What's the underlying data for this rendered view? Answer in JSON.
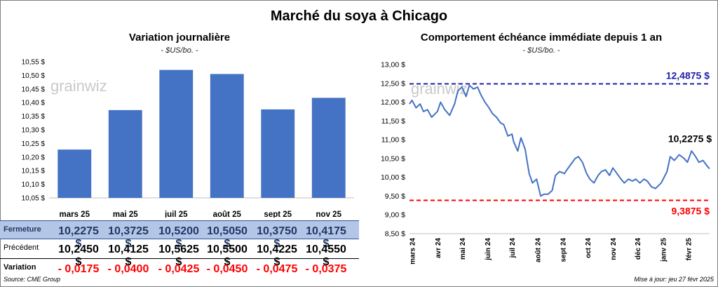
{
  "title": "Marché du soya à Chicago",
  "left_panel": {
    "title": "Variation journalière",
    "subtitle": "- $US/bo. -",
    "watermark": "grainwiz",
    "table": {
      "rows": [
        {
          "label": "Fermeture",
          "values": [
            "10,2275 $",
            "10,3725 $",
            "10,5200 $",
            "10,5050 $",
            "10,3750 $",
            "10,4175 $"
          ]
        },
        {
          "label": "Précédent",
          "values": [
            "10,2450 $",
            "10,4125 $",
            "10,5625 $",
            "10,5500 $",
            "10,4225 $",
            "10,4550 $"
          ]
        },
        {
          "label": "Variation",
          "values": [
            "- 0,0175",
            "- 0,0400",
            "- 0,0425",
            "- 0,0450",
            "- 0,0475",
            "- 0,0375"
          ]
        }
      ]
    }
  },
  "right_panel": {
    "title": "Comportement échéance immédiate depuis 1 an",
    "subtitle": "- $US/bo. -",
    "watermark": "grainwiz"
  },
  "footer": {
    "source": "Source: CME Group",
    "updated": "Mise à jour: jeu 27 févr 2025"
  },
  "colors": {
    "bar": "#4472c4",
    "line": "#4472c4",
    "high_line": "#1f1fa8",
    "low_line": "#ff0000",
    "table_highlight": "#b4c6e7",
    "negative": "#ff0000"
  },
  "chart_data": [
    {
      "type": "bar",
      "title": "Variation journalière",
      "subtitle": "- $US/bo. -",
      "categories": [
        "mars 25",
        "mai 25",
        "juil 25",
        "août 25",
        "sept 25",
        "nov 25"
      ],
      "values": [
        10.2275,
        10.3725,
        10.52,
        10.505,
        10.375,
        10.4175
      ],
      "ylim": [
        10.05,
        10.55
      ],
      "yticks": [
        10.05,
        10.1,
        10.15,
        10.2,
        10.25,
        10.3,
        10.35,
        10.4,
        10.45,
        10.5,
        10.55
      ],
      "ytick_labels": [
        "10,05 $",
        "10,10 $",
        "10,15 $",
        "10,20 $",
        "10,25 $",
        "10,30 $",
        "10,35 $",
        "10,40 $",
        "10,45 $",
        "10,50 $",
        "10,55 $"
      ],
      "grid": false,
      "legend": "none"
    },
    {
      "type": "line",
      "title": "Comportement échéance immédiate depuis 1 an",
      "subtitle": "- $US/bo. -",
      "ylim": [
        8.5,
        13.0
      ],
      "yticks": [
        8.5,
        9.0,
        9.5,
        10.0,
        10.5,
        11.0,
        11.5,
        12.0,
        12.5,
        13.0
      ],
      "ytick_labels": [
        "8,50 $",
        "9,00 $",
        "9,50 $",
        "10,00 $",
        "10,50 $",
        "11,00 $",
        "11,50 $",
        "12,00 $",
        "12,50 $",
        "13,00 $"
      ],
      "xlim": [
        "2024-02-27",
        "2025-02-27"
      ],
      "xticks": [
        "2024-03-01",
        "2024-04-01",
        "2024-05-01",
        "2024-06-01",
        "2024-07-01",
        "2024-08-01",
        "2024-09-01",
        "2024-10-01",
        "2024-11-01",
        "2024-12-01",
        "2025-01-01",
        "2025-02-01"
      ],
      "xtick_labels": [
        "mars 24",
        "avr 24",
        "mai 24",
        "juin 24",
        "juil 24",
        "août 24",
        "sept 24",
        "oct 24",
        "nov 24",
        "déc 24",
        "janv 25",
        "févr 25"
      ],
      "series": [
        {
          "x": [
            "2024-02-27",
            "2024-03-01",
            "2024-03-06",
            "2024-03-11",
            "2024-03-15",
            "2024-03-20",
            "2024-03-25",
            "2024-04-01",
            "2024-04-05",
            "2024-04-10",
            "2024-04-16",
            "2024-04-22",
            "2024-04-26",
            "2024-05-01",
            "2024-05-06",
            "2024-05-10",
            "2024-05-15",
            "2024-05-20",
            "2024-05-24",
            "2024-05-29",
            "2024-06-03",
            "2024-06-07",
            "2024-06-12",
            "2024-06-17",
            "2024-06-21",
            "2024-06-26",
            "2024-07-01",
            "2024-07-03",
            "2024-07-08",
            "2024-07-12",
            "2024-07-17",
            "2024-07-22",
            "2024-07-26",
            "2024-07-31",
            "2024-08-05",
            "2024-08-09",
            "2024-08-14",
            "2024-08-19",
            "2024-08-23",
            "2024-08-28",
            "2024-09-03",
            "2024-09-06",
            "2024-09-11",
            "2024-09-16",
            "2024-09-20",
            "2024-09-25",
            "2024-09-30",
            "2024-10-04",
            "2024-10-09",
            "2024-10-14",
            "2024-10-18",
            "2024-10-23",
            "2024-10-28",
            "2024-11-01",
            "2024-11-06",
            "2024-11-11",
            "2024-11-15",
            "2024-11-20",
            "2024-11-25",
            "2024-11-29",
            "2024-12-04",
            "2024-12-09",
            "2024-12-13",
            "2024-12-18",
            "2024-12-23",
            "2024-12-30",
            "2025-01-06",
            "2025-01-10",
            "2025-01-15",
            "2025-01-21",
            "2025-01-27",
            "2025-01-31",
            "2025-02-05",
            "2025-02-10",
            "2025-02-14",
            "2025-02-19",
            "2025-02-24",
            "2025-02-27"
          ],
          "y": [
            11.95,
            12.05,
            11.85,
            11.95,
            11.75,
            11.8,
            11.6,
            11.75,
            12.0,
            11.8,
            11.65,
            11.95,
            12.3,
            12.4,
            12.15,
            12.45,
            12.35,
            12.4,
            12.2,
            12.0,
            11.85,
            11.7,
            11.6,
            11.45,
            11.4,
            11.1,
            11.15,
            10.95,
            10.7,
            11.05,
            10.75,
            10.1,
            9.85,
            9.95,
            9.5,
            9.55,
            9.55,
            9.65,
            10.05,
            10.15,
            10.1,
            10.2,
            10.35,
            10.5,
            10.55,
            10.4,
            10.1,
            9.95,
            9.85,
            10.05,
            10.15,
            10.2,
            10.05,
            10.25,
            10.1,
            9.95,
            9.85,
            9.95,
            9.9,
            9.95,
            9.85,
            9.95,
            9.9,
            9.75,
            9.7,
            9.85,
            10.15,
            10.55,
            10.45,
            10.6,
            10.5,
            10.4,
            10.7,
            10.55,
            10.4,
            10.45,
            10.3,
            10.2275
          ]
        }
      ],
      "reference_lines": [
        {
          "value": 12.4875,
          "label": "12,4875 $"
        },
        {
          "value": 9.3875,
          "label": "9,3875 $"
        }
      ],
      "annotations": [
        {
          "label": "10,2275 $"
        }
      ],
      "grid": false,
      "legend": "none"
    }
  ]
}
